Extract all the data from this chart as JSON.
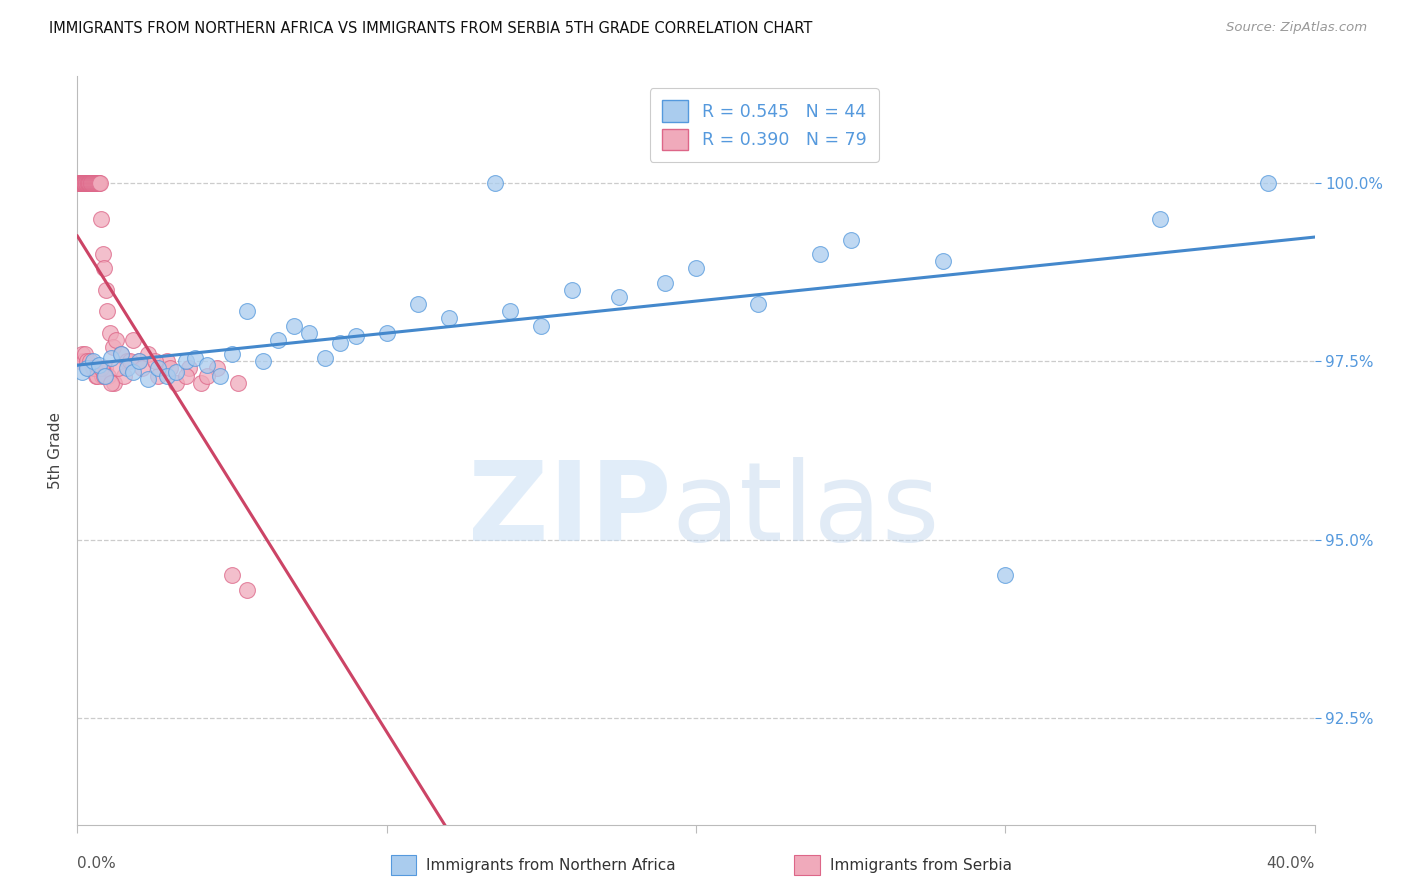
{
  "title": "IMMIGRANTS FROM NORTHERN AFRICA VS IMMIGRANTS FROM SERBIA 5TH GRADE CORRELATION CHART",
  "source": "Source: ZipAtlas.com",
  "ylabel": "5th Grade",
  "yticks": [
    92.5,
    95.0,
    97.5,
    100.0
  ],
  "ytick_labels": [
    "92.5%",
    "95.0%",
    "97.5%",
    "100.0%"
  ],
  "xmin": 0.0,
  "xmax": 40.0,
  "ymin": 91.0,
  "ymax": 101.5,
  "legend_blue_r": "R = 0.545",
  "legend_blue_n": "N = 44",
  "legend_pink_r": "R = 0.390",
  "legend_pink_n": "N = 79",
  "blue_label": "Immigrants from Northern Africa",
  "pink_label": "Immigrants from Serbia",
  "blue_fill": "#aaccee",
  "pink_fill": "#f0aabb",
  "blue_edge": "#5599dd",
  "pink_edge": "#dd6688",
  "blue_line_color": "#4488cc",
  "pink_line_color": "#cc4466",
  "blue_x": [
    0.15,
    0.3,
    0.5,
    0.7,
    0.9,
    1.1,
    1.4,
    1.6,
    1.8,
    2.0,
    2.3,
    2.6,
    2.9,
    3.2,
    3.5,
    3.8,
    4.2,
    4.6,
    5.0,
    5.5,
    6.0,
    6.5,
    7.0,
    7.5,
    8.0,
    8.5,
    9.0,
    10.0,
    11.0,
    12.0,
    13.5,
    14.0,
    15.0,
    16.0,
    17.5,
    19.0,
    20.0,
    22.0,
    24.0,
    25.0,
    28.0,
    30.0,
    35.0,
    38.5
  ],
  "blue_y": [
    97.35,
    97.4,
    97.5,
    97.45,
    97.3,
    97.55,
    97.6,
    97.4,
    97.35,
    97.5,
    97.25,
    97.4,
    97.3,
    97.35,
    97.5,
    97.55,
    97.45,
    97.3,
    97.6,
    98.2,
    97.5,
    97.8,
    98.0,
    97.9,
    97.55,
    97.75,
    97.85,
    97.9,
    98.3,
    98.1,
    100.0,
    98.2,
    98.0,
    98.5,
    98.4,
    98.6,
    98.8,
    98.3,
    99.0,
    99.2,
    98.9,
    94.5,
    99.5,
    100.0
  ],
  "pink_x": [
    0.05,
    0.07,
    0.09,
    0.11,
    0.13,
    0.15,
    0.17,
    0.19,
    0.21,
    0.23,
    0.25,
    0.27,
    0.29,
    0.31,
    0.33,
    0.35,
    0.37,
    0.39,
    0.41,
    0.43,
    0.45,
    0.48,
    0.51,
    0.54,
    0.57,
    0.6,
    0.63,
    0.66,
    0.7,
    0.74,
    0.78,
    0.82,
    0.87,
    0.92,
    0.97,
    1.05,
    1.15,
    1.25,
    1.4,
    1.6,
    1.8,
    2.0,
    2.3,
    2.6,
    2.9,
    3.2,
    3.6,
    4.0,
    4.5,
    5.0,
    5.5,
    0.1,
    0.15,
    0.2,
    0.25,
    0.3,
    0.35,
    0.4,
    0.5,
    0.6,
    0.7,
    0.8,
    0.9,
    1.0,
    1.2,
    1.5,
    0.55,
    0.65,
    0.75,
    0.85,
    1.1,
    1.3,
    1.7,
    2.1,
    2.5,
    3.0,
    3.5,
    4.2,
    5.2
  ],
  "pink_y": [
    100.0,
    100.0,
    100.0,
    100.0,
    100.0,
    100.0,
    100.0,
    100.0,
    100.0,
    100.0,
    100.0,
    100.0,
    100.0,
    100.0,
    100.0,
    100.0,
    100.0,
    100.0,
    100.0,
    100.0,
    100.0,
    100.0,
    100.0,
    100.0,
    100.0,
    100.0,
    100.0,
    100.0,
    100.0,
    100.0,
    99.5,
    99.0,
    98.8,
    98.5,
    98.2,
    97.9,
    97.7,
    97.8,
    97.6,
    97.5,
    97.8,
    97.5,
    97.6,
    97.3,
    97.5,
    97.2,
    97.4,
    97.2,
    97.4,
    94.5,
    94.3,
    97.5,
    97.6,
    97.5,
    97.6,
    97.5,
    97.4,
    97.5,
    97.4,
    97.3,
    97.4,
    97.3,
    97.4,
    97.3,
    97.2,
    97.3,
    97.4,
    97.3,
    97.4,
    97.3,
    97.2,
    97.4,
    97.5,
    97.4,
    97.5,
    97.4,
    97.3,
    97.3,
    97.2
  ]
}
